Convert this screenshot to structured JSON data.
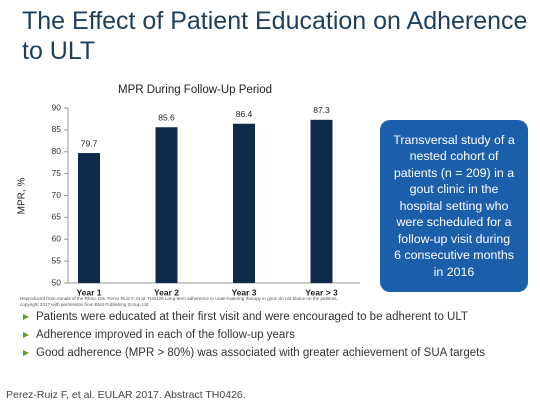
{
  "header": {
    "title": "The Effect of Patient Education on Adherence to ULT"
  },
  "chart_data": {
    "type": "bar",
    "title": "MPR During Follow-Up Period",
    "y_label": "MPR, %",
    "categories": [
      "Year 1",
      "Year 2",
      "Year 3",
      "Year > 3"
    ],
    "values": [
      79.7,
      85.6,
      86.4,
      87.3
    ],
    "color": "#0f2a4a",
    "ylim": [
      50,
      90
    ],
    "yticks": [
      50,
      55,
      60,
      65,
      70,
      75,
      80,
      85,
      90
    ],
    "grid": false
  },
  "callout": {
    "lines": [
      "Transversal study of a",
      "nested cohort of",
      "patients (n = 209) in a",
      "gout clinic in the",
      "hospital setting who",
      "were scheduled for a",
      "follow-up visit during",
      "6 consecutive months",
      "in 2016"
    ]
  },
  "source_note": "Reproduced from Annals of the Rheu. Dis. Perez-Ruiz F, et al. TH0426 Long-term adherence to urate-lowering therapy in gout: do not blame on the patients, copyright 2017 with permission from BMJ Publishing Group Ltd.",
  "bullets": [
    "Patients were educated at their first visit and were encouraged to be adherent to ULT",
    "Adherence improved in each of the follow-up years",
    "Good adherence (MPR > 80%) was associated with greater achievement of SUA targets"
  ],
  "citation": "Perez-Ruiz F, et al. EULAR 2017. Abstract TH0426."
}
